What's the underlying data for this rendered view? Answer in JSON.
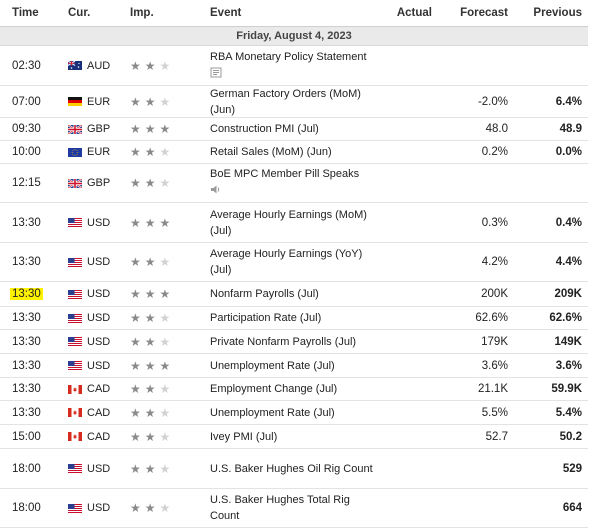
{
  "headers": {
    "time": "Time",
    "cur": "Cur.",
    "imp": "Imp.",
    "event": "Event",
    "actual": "Actual",
    "forecast": "Forecast",
    "previous": "Previous"
  },
  "date": "Friday, August 4, 2023",
  "rows": [
    {
      "time": "02:30",
      "cur": "AUD",
      "event": "RBA Monetary Policy Statement",
      "actual": "",
      "forecast": "",
      "previous": "",
      "stars": 2,
      "sub_icon": "document-icon",
      "flag": "au"
    },
    {
      "time": "07:00",
      "cur": "EUR",
      "event": "German Factory Orders (MoM) (Jun)",
      "actual": "",
      "forecast": "-2.0%",
      "previous": "6.4%",
      "stars": 2,
      "flag": "de"
    },
    {
      "time": "09:30",
      "cur": "GBP",
      "event": "Construction PMI (Jul)",
      "actual": "",
      "forecast": "48.0",
      "previous": "48.9",
      "stars": 3,
      "flag": "gb"
    },
    {
      "time": "10:00",
      "cur": "EUR",
      "event": "Retail Sales (MoM) (Jun)",
      "actual": "",
      "forecast": "0.2%",
      "previous": "0.0%",
      "stars": 2,
      "flag": "eu"
    },
    {
      "time": "12:15",
      "cur": "GBP",
      "event": "BoE MPC Member Pill Speaks",
      "actual": "",
      "forecast": "",
      "previous": "",
      "stars": 2,
      "sub_icon": "speaker-icon",
      "flag": "gb"
    },
    {
      "time": "13:30",
      "cur": "USD",
      "event": "Average Hourly Earnings (MoM) (Jul)",
      "actual": "",
      "forecast": "0.3%",
      "previous": "0.4%",
      "stars": 3,
      "flag": "us"
    },
    {
      "time": "13:30",
      "cur": "USD",
      "event": "Average Hourly Earnings (YoY) (Jul)",
      "actual": "",
      "forecast": "4.2%",
      "previous": "4.4%",
      "stars": 2,
      "flag": "us"
    },
    {
      "time": "13:30",
      "cur": "USD",
      "event": "Nonfarm Payrolls (Jul)",
      "actual": "",
      "forecast": "200K",
      "previous": "209K",
      "stars": 3,
      "flag": "us",
      "highlight": true
    },
    {
      "time": "13:30",
      "cur": "USD",
      "event": "Participation Rate (Jul)",
      "actual": "",
      "forecast": "62.6%",
      "previous": "62.6%",
      "stars": 2,
      "flag": "us"
    },
    {
      "time": "13:30",
      "cur": "USD",
      "event": "Private Nonfarm Payrolls (Jul)",
      "actual": "",
      "forecast": "179K",
      "previous": "149K",
      "stars": 2,
      "flag": "us"
    },
    {
      "time": "13:30",
      "cur": "USD",
      "event": "Unemployment Rate (Jul)",
      "actual": "",
      "forecast": "3.6%",
      "previous": "3.6%",
      "stars": 3,
      "flag": "us"
    },
    {
      "time": "13:30",
      "cur": "CAD",
      "event": "Employment Change (Jul)",
      "actual": "",
      "forecast": "21.1K",
      "previous": "59.9K",
      "stars": 2,
      "flag": "ca"
    },
    {
      "time": "13:30",
      "cur": "CAD",
      "event": "Unemployment Rate (Jul)",
      "actual": "",
      "forecast": "5.5%",
      "previous": "5.4%",
      "stars": 2,
      "flag": "ca"
    },
    {
      "time": "15:00",
      "cur": "CAD",
      "event": "Ivey PMI (Jul)",
      "actual": "",
      "forecast": "52.7",
      "previous": "50.2",
      "stars": 2,
      "flag": "ca"
    },
    {
      "time": "18:00",
      "cur": "USD",
      "event": "U.S. Baker Hughes Oil Rig Count",
      "actual": "",
      "forecast": "",
      "previous": "529",
      "stars": 2,
      "flag": "us"
    },
    {
      "time": "18:00",
      "cur": "USD",
      "event": "U.S. Baker Hughes Total Rig Count",
      "actual": "",
      "forecast": "",
      "previous": "664",
      "stars": 2,
      "flag": "us"
    }
  ],
  "colors": {
    "highlight": "#fff200",
    "star_on": "#8a8a8a",
    "star_off": "#d2d2d2",
    "date_bg": "#eaeaea"
  }
}
